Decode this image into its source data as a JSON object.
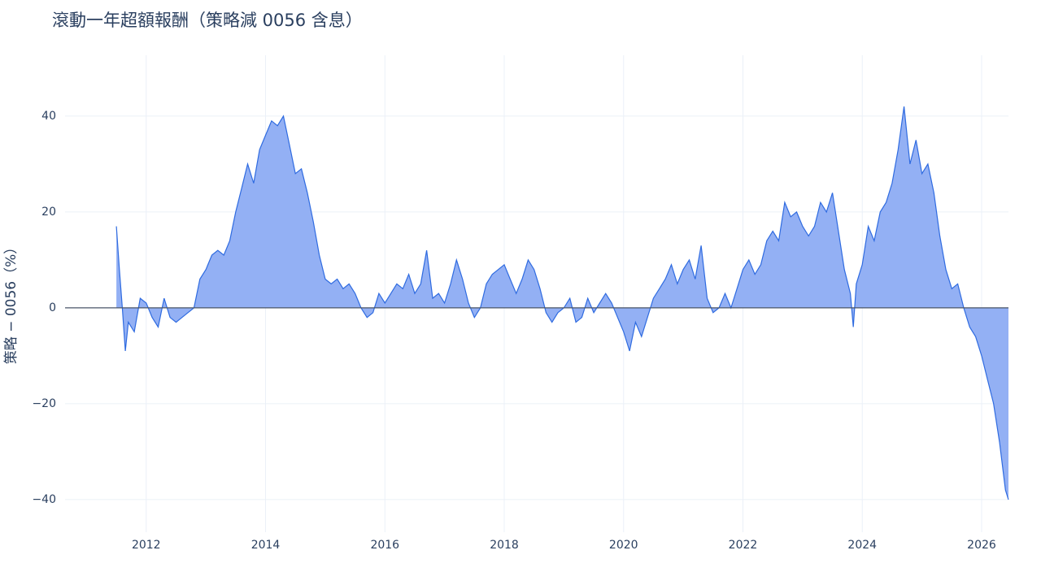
{
  "chart_data": {
    "type": "area",
    "title": "滾動一年超額報酬（策略減 0056 含息）",
    "y_label": "策略 − 0056（%）",
    "xlim": [
      2010.64,
      2026.45
    ],
    "xticks": [
      2012,
      2014,
      2016,
      2018,
      2020,
      2022,
      2024,
      2026
    ],
    "ylim": [
      -46.8,
      52.7
    ],
    "yticks": [
      {
        "value": -40,
        "label": "−40"
      },
      {
        "value": -20,
        "label": "−20"
      },
      0,
      20,
      40
    ],
    "grid": true,
    "series": [
      {
        "name": "策略 − 0056",
        "color": "#2f6be0",
        "fill": "#93b0f4",
        "x": [
          2011.5,
          2011.55,
          2011.6,
          2011.65,
          2011.7,
          2011.8,
          2011.9,
          2012.0,
          2012.1,
          2012.2,
          2012.3,
          2012.4,
          2012.5,
          2012.6,
          2012.7,
          2012.8,
          2012.9,
          2013.0,
          2013.1,
          2013.2,
          2013.3,
          2013.4,
          2013.5,
          2013.6,
          2013.7,
          2013.8,
          2013.9,
          2014.0,
          2014.1,
          2014.2,
          2014.3,
          2014.4,
          2014.5,
          2014.6,
          2014.7,
          2014.8,
          2014.9,
          2015.0,
          2015.1,
          2015.2,
          2015.3,
          2015.4,
          2015.5,
          2015.6,
          2015.7,
          2015.8,
          2015.9,
          2016.0,
          2016.1,
          2016.2,
          2016.3,
          2016.4,
          2016.5,
          2016.6,
          2016.7,
          2016.8,
          2016.9,
          2017.0,
          2017.1,
          2017.2,
          2017.3,
          2017.4,
          2017.5,
          2017.6,
          2017.7,
          2017.8,
          2017.9,
          2018.0,
          2018.1,
          2018.2,
          2018.3,
          2018.4,
          2018.5,
          2018.6,
          2018.7,
          2018.8,
          2018.9,
          2019.0,
          2019.1,
          2019.2,
          2019.3,
          2019.4,
          2019.5,
          2019.6,
          2019.7,
          2019.8,
          2019.9,
          2020.0,
          2020.1,
          2020.2,
          2020.3,
          2020.4,
          2020.5,
          2020.6,
          2020.7,
          2020.8,
          2020.9,
          2021.0,
          2021.1,
          2021.2,
          2021.3,
          2021.4,
          2021.5,
          2021.6,
          2021.7,
          2021.8,
          2021.9,
          2022.0,
          2022.1,
          2022.2,
          2022.3,
          2022.4,
          2022.5,
          2022.6,
          2022.7,
          2022.8,
          2022.9,
          2023.0,
          2023.1,
          2023.2,
          2023.3,
          2023.4,
          2023.5,
          2023.6,
          2023.7,
          2023.8,
          2023.85,
          2023.9,
          2024.0,
          2024.1,
          2024.2,
          2024.3,
          2024.4,
          2024.5,
          2024.6,
          2024.7,
          2024.8,
          2024.9,
          2025.0,
          2025.1,
          2025.2,
          2025.3,
          2025.4,
          2025.5,
          2025.6,
          2025.7,
          2025.8,
          2025.9,
          2026.0,
          2026.1,
          2026.2,
          2026.3,
          2026.4,
          2026.45
        ],
        "values": [
          17,
          8,
          0,
          -9,
          -3,
          -5,
          2,
          1,
          -2,
          -4,
          2,
          -2,
          -3,
          -2,
          -1,
          0,
          6,
          8,
          11,
          12,
          11,
          14,
          20,
          25,
          30,
          26,
          33,
          36,
          39,
          38,
          40,
          34,
          28,
          29,
          24,
          18,
          11,
          6,
          5,
          6,
          4,
          5,
          3,
          0,
          -2,
          -1,
          3,
          1,
          3,
          5,
          4,
          7,
          3,
          5,
          12,
          2,
          3,
          1,
          5,
          10,
          6,
          1,
          -2,
          0,
          5,
          7,
          8,
          9,
          6,
          3,
          6,
          10,
          8,
          4,
          -1,
          -3,
          -1,
          0,
          2,
          -3,
          -2,
          2,
          -1,
          1,
          3,
          1,
          -2,
          -5,
          -9,
          -3,
          -6,
          -2,
          2,
          4,
          6,
          9,
          5,
          8,
          10,
          6,
          13,
          2,
          -1,
          0,
          3,
          0,
          4,
          8,
          10,
          7,
          9,
          14,
          16,
          14,
          22,
          19,
          20,
          17,
          15,
          17,
          22,
          20,
          24,
          16,
          8,
          3,
          -4,
          5,
          9,
          17,
          14,
          20,
          22,
          26,
          33,
          42,
          30,
          35,
          28,
          30,
          24,
          15,
          8,
          4,
          5,
          0,
          -4,
          -6,
          -10,
          -15,
          -20,
          -28,
          -38,
          -40
        ]
      }
    ]
  }
}
